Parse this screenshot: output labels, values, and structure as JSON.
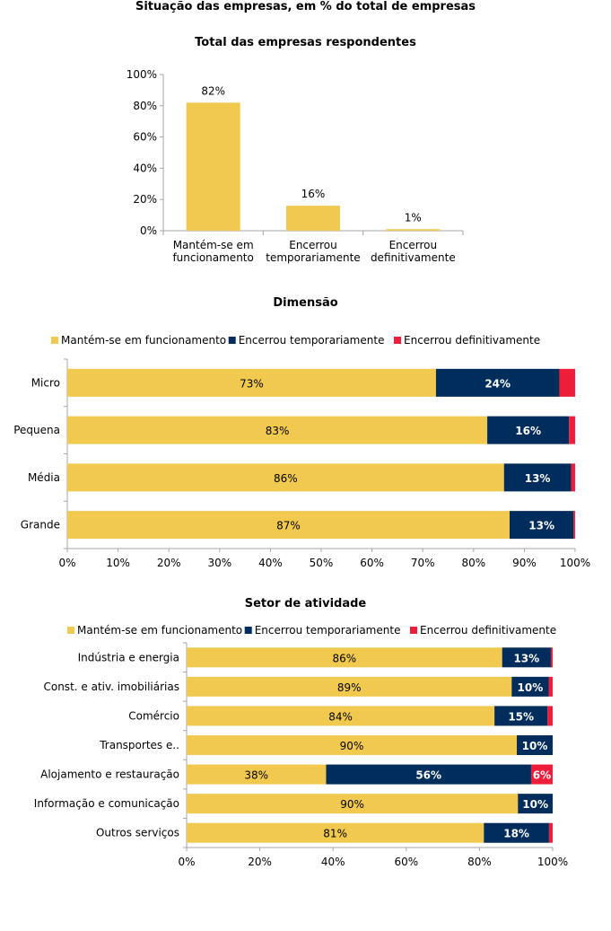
{
  "page_title": "Situação das empresas, em % do total de empresas",
  "colors": {
    "funcionamento": "#F2C94F",
    "temporario": "#002D5B",
    "definitivo": "#EE1D3A",
    "axis": "#A6A6A6",
    "grid": "#D9D9D9"
  },
  "chart_data": [
    {
      "type": "bar",
      "title": "Total das empresas respondentes",
      "categories": [
        "Mantém-se em funcionamento",
        "Encerrou temporariamente",
        "Encerrou definitivamente"
      ],
      "category_lines": [
        [
          "Mantém-se em",
          "funcionamento"
        ],
        [
          "Encerrou",
          "temporariamente"
        ],
        [
          "Encerrou",
          "definitivamente"
        ]
      ],
      "values": [
        82,
        16,
        1
      ],
      "data_labels": [
        "82%",
        "16%",
        "1%"
      ],
      "ylim": [
        0,
        100
      ],
      "yticks": [
        "0%",
        "20%",
        "40%",
        "60%",
        "80%",
        "100%"
      ],
      "grid": false
    },
    {
      "type": "bar",
      "orientation": "horizontal",
      "stacked": true,
      "title": "Dimensão",
      "legend": [
        "Mantém-se em funcionamento",
        "Encerrou temporariamente",
        "Encerrou definitivamente"
      ],
      "legend_position": "top",
      "categories": [
        "Micro",
        "Pequena",
        "Média",
        "Grande"
      ],
      "series": [
        {
          "name": "Mantém-se em funcionamento",
          "values": [
            72.6,
            82.7,
            86.0,
            87.1
          ],
          "labels": [
            "73%",
            "83%",
            "86%",
            "87%"
          ]
        },
        {
          "name": "Encerrou temporariamente",
          "values": [
            24.3,
            16.1,
            13.2,
            12.6
          ],
          "labels": [
            "24%",
            "16%",
            "13%",
            "13%"
          ]
        },
        {
          "name": "Encerrou definitivamente",
          "values": [
            3.1,
            1.2,
            0.8,
            0.3
          ],
          "labels": [
            "",
            "",
            "",
            ""
          ]
        }
      ],
      "xlim": [
        0,
        100
      ],
      "xticks": [
        "0%",
        "10%",
        "20%",
        "30%",
        "40%",
        "50%",
        "60%",
        "70%",
        "80%",
        "90%",
        "100%"
      ],
      "grid": false
    },
    {
      "type": "bar",
      "orientation": "horizontal",
      "stacked": true,
      "title": "Setor de atividade",
      "legend": [
        "Mantém-se em funcionamento",
        "Encerrou temporariamente",
        "Encerrou definitivamente"
      ],
      "legend_position": "top",
      "categories": [
        "Indústria e energia",
        "Const. e ativ. imobiliárias",
        "Comércio",
        "Transportes e..",
        "Alojamento e restauração",
        "Informação e comunicação",
        "Outros serviços"
      ],
      "series": [
        {
          "name": "Mantém-se em funcionamento",
          "values": [
            86.2,
            88.8,
            84.1,
            90.2,
            38.1,
            90.5,
            81.2
          ],
          "labels": [
            "86%",
            "89%",
            "84%",
            "90%",
            "38%",
            "90%",
            "81%"
          ]
        },
        {
          "name": "Encerrou temporariamente",
          "values": [
            13.3,
            10.1,
            14.5,
            9.8,
            56.0,
            9.5,
            17.8
          ],
          "labels": [
            "13%",
            "10%",
            "15%",
            "10%",
            "56%",
            "10%",
            "18%"
          ]
        },
        {
          "name": "Encerrou definitivamente",
          "values": [
            0.5,
            1.1,
            1.4,
            0.0,
            5.9,
            0.0,
            1.0
          ],
          "labels": [
            "",
            "",
            "",
            "",
            "6%",
            "",
            ""
          ]
        }
      ],
      "xlim": [
        0,
        100
      ],
      "xticks": [
        "0%",
        "20%",
        "40%",
        "60%",
        "80%",
        "100%"
      ],
      "grid": false
    }
  ]
}
